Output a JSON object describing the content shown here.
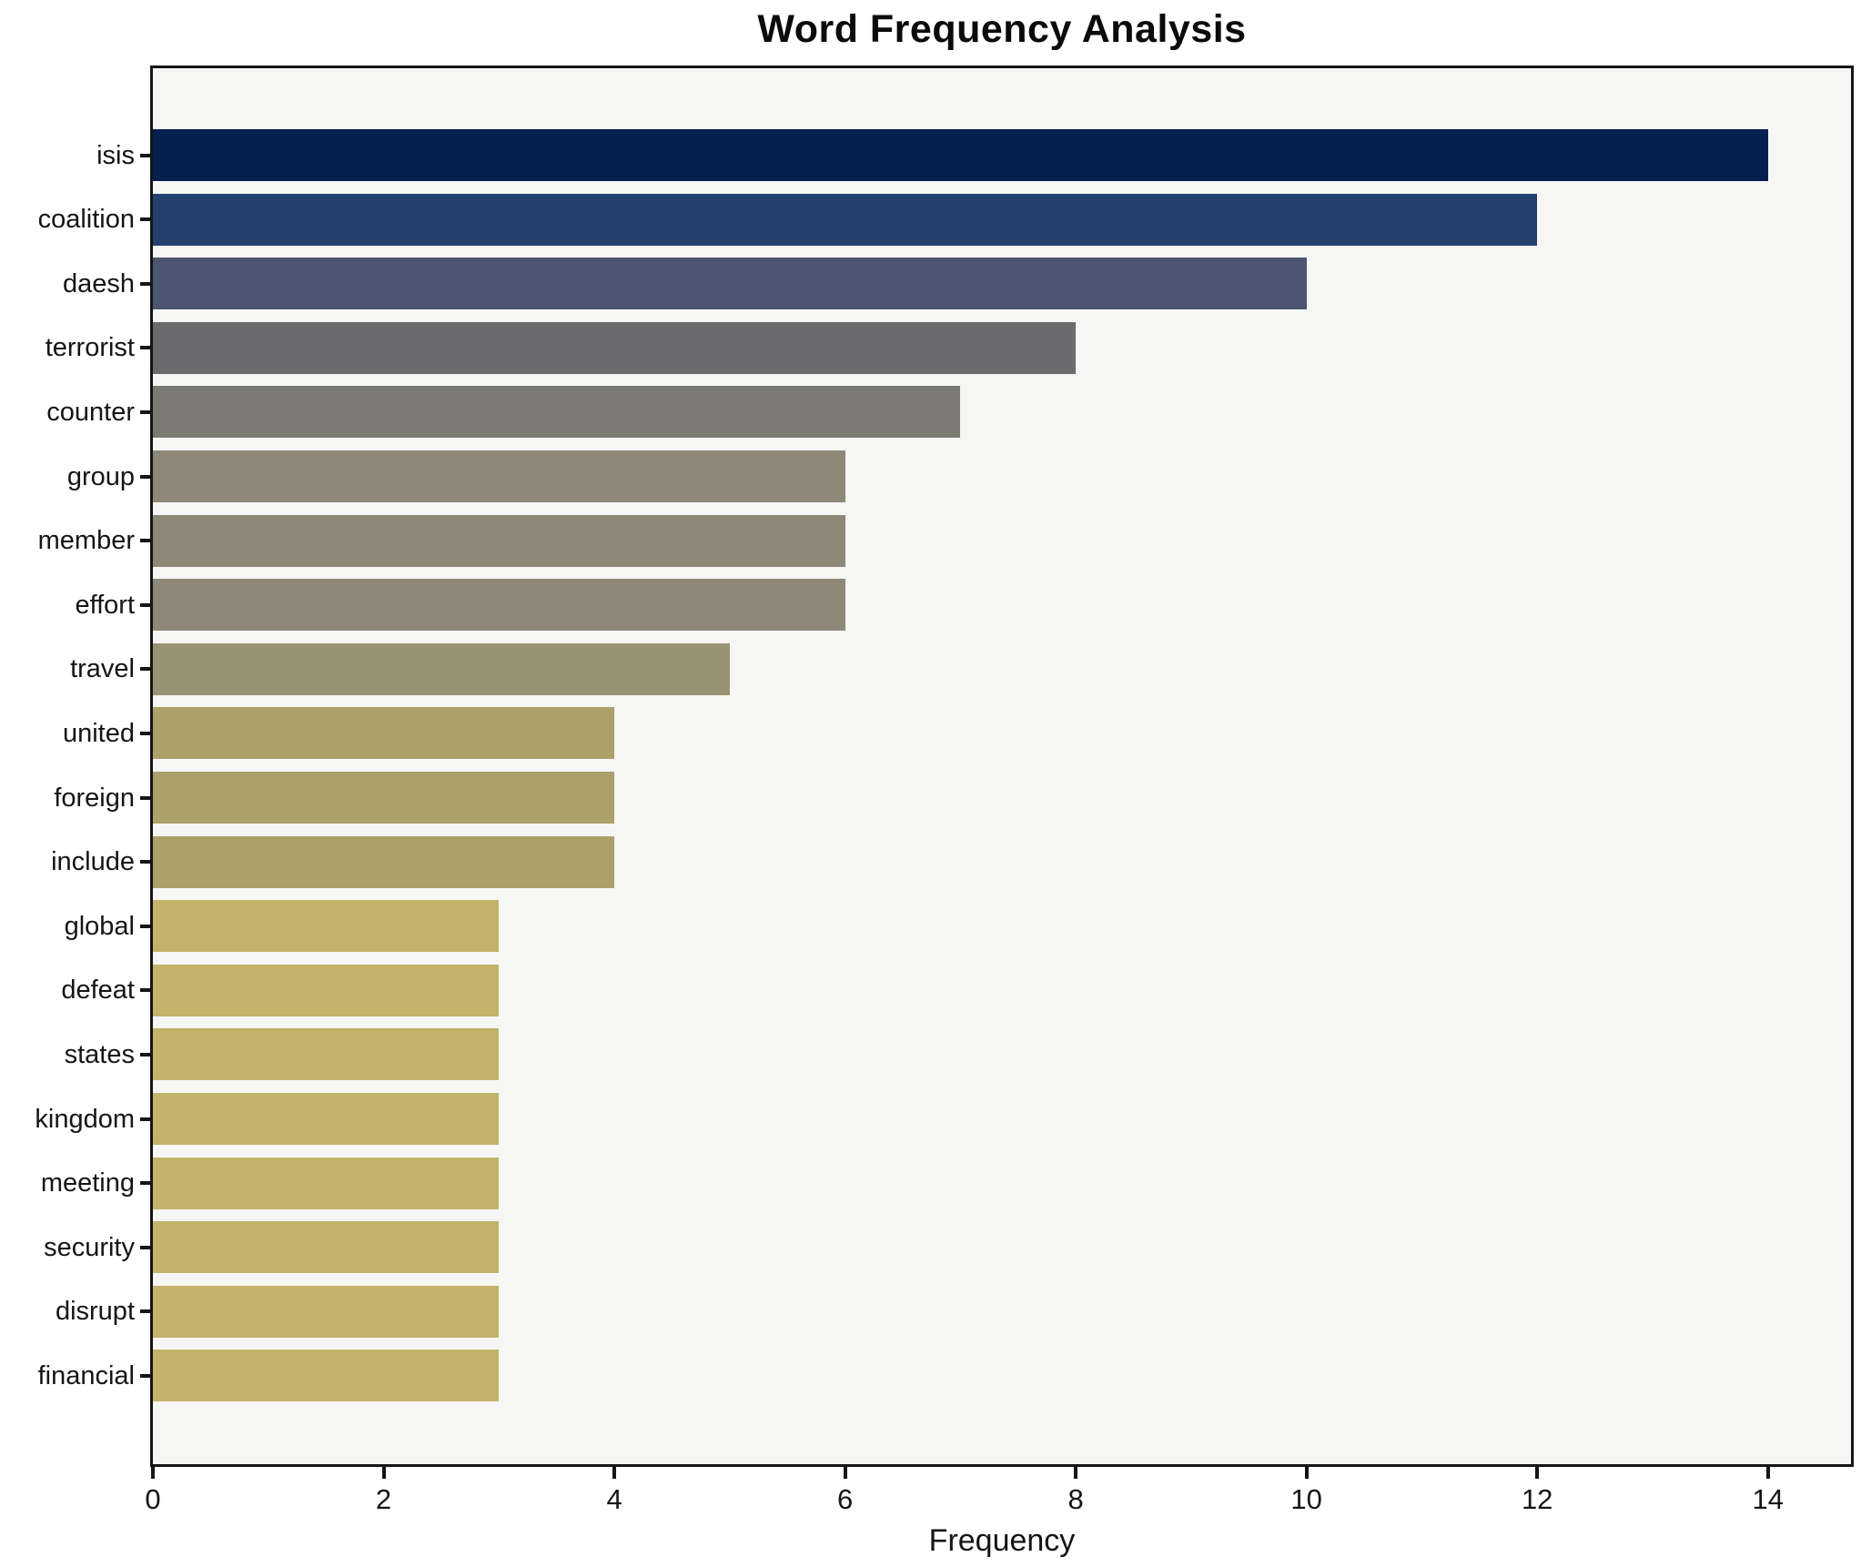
{
  "title": "Word Frequency Analysis",
  "xlabel": "Frequency",
  "chart_data": {
    "type": "bar",
    "orientation": "horizontal",
    "title": "Word Frequency Analysis",
    "xlabel": "Frequency",
    "ylabel": "",
    "categories": [
      "isis",
      "coalition",
      "daesh",
      "terrorist",
      "counter",
      "group",
      "member",
      "effort",
      "travel",
      "united",
      "foreign",
      "include",
      "global",
      "defeat",
      "states",
      "kingdom",
      "meeting",
      "security",
      "disrupt",
      "financial"
    ],
    "values": [
      14,
      12,
      10,
      8,
      7,
      6,
      6,
      6,
      5,
      4,
      4,
      4,
      3,
      3,
      3,
      3,
      3,
      3,
      3,
      3
    ],
    "bar_colors": [
      "#04204e",
      "#24406f",
      "#4d5670",
      "#6b6b6e",
      "#7b7a72",
      "#8d8877",
      "#8d8877",
      "#8d8877",
      "#9a9372",
      "#aba169",
      "#aba169",
      "#aba169",
      "#c3b269",
      "#c3b269",
      "#c3b269",
      "#c3b269",
      "#c3b269",
      "#c3b269",
      "#c3b269",
      "#c3b269"
    ],
    "xlim": [
      0,
      14.72
    ],
    "xticks": [
      0,
      2,
      4,
      6,
      8,
      10,
      12,
      14
    ],
    "grid": false,
    "legend": null,
    "plot_background": "#f6f6f5",
    "figure_background": "#ffffff",
    "spine_color": "#151515"
  }
}
